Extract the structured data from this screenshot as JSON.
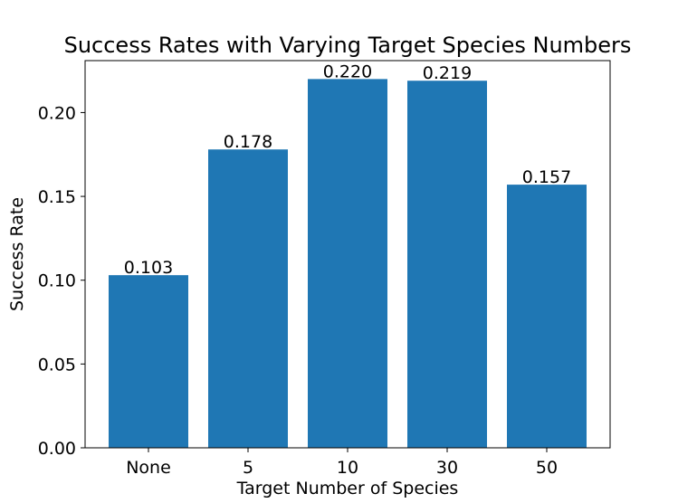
{
  "chart_data": {
    "type": "bar",
    "title": "Success Rates with Varying Target Species Numbers",
    "xlabel": "Target Number of Species",
    "ylabel": "Success Rate",
    "categories": [
      "None",
      "5",
      "10",
      "30",
      "50"
    ],
    "values": [
      0.103,
      0.178,
      0.22,
      0.219,
      0.157
    ],
    "data_labels": [
      "0.103",
      "0.178",
      "0.220",
      "0.219",
      "0.157"
    ],
    "ylim": [
      0,
      0.231
    ],
    "yticks": [
      0.0,
      0.05,
      0.1,
      0.15,
      0.2
    ],
    "ytick_labels": [
      "0.00",
      "0.05",
      "0.10",
      "0.15",
      "0.20"
    ],
    "bar_color": "#1f77b4",
    "grid": false,
    "legend": "none"
  }
}
